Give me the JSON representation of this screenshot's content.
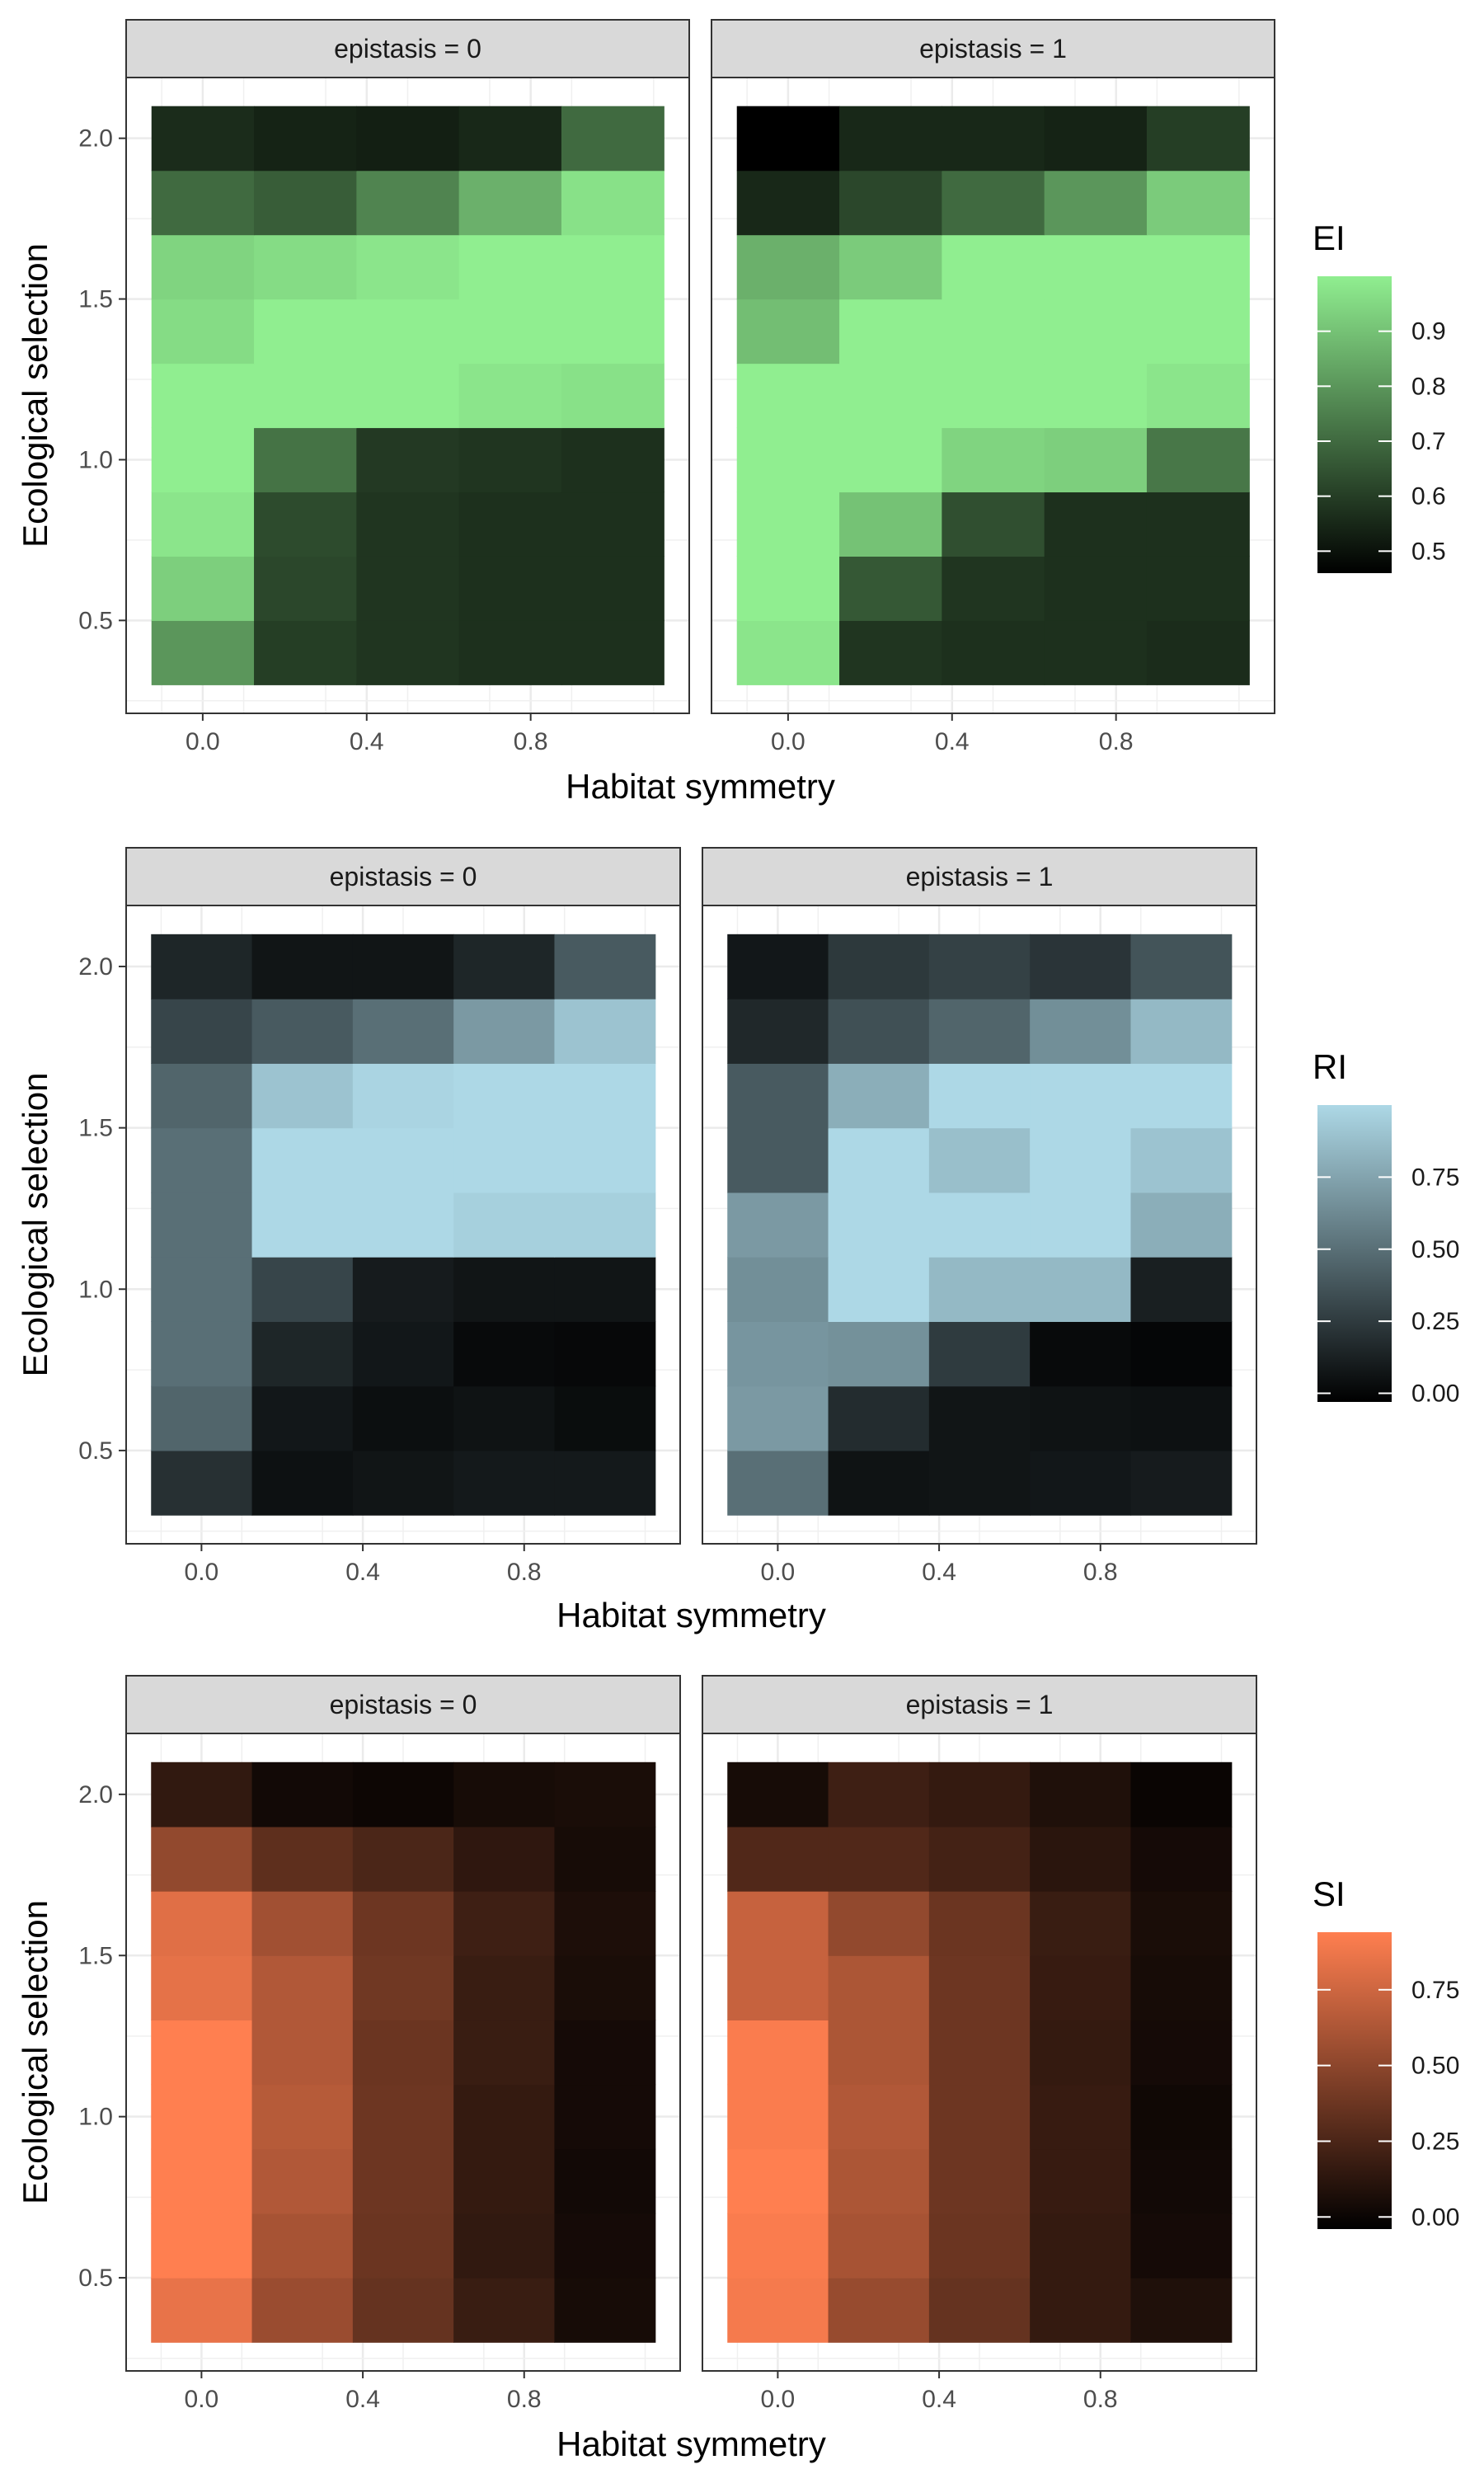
{
  "chart_data": [
    {
      "type": "heatmap",
      "metric": "EI",
      "xlabel": "Habitat symmetry",
      "ylabel": "Ecological selection",
      "x": [
        0.0,
        0.25,
        0.5,
        0.75,
        1.0
      ],
      "y": [
        0.4,
        0.6,
        0.8,
        1.0,
        1.2,
        1.4,
        1.6,
        1.8,
        2.0
      ],
      "x_tick_labels": [
        "0.0",
        "0.4",
        "0.8"
      ],
      "y_tick_labels": [
        "0.5",
        "1.0",
        "1.5",
        "2.0"
      ],
      "legend": {
        "title": "EI",
        "tick_labels": [
          "0.5",
          "0.6",
          "0.7",
          "0.8",
          "0.9"
        ],
        "ticks": [
          0.5,
          0.6,
          0.7,
          0.8,
          0.9
        ],
        "range": [
          0.46,
          1.0
        ],
        "low_color": "#000000",
        "high_color": "#90ee90"
      },
      "panels": [
        {
          "strip": "epistasis = 0",
          "z": [
            [
              0.8,
              0.6,
              0.58,
              0.57,
              0.57
            ],
            [
              0.93,
              0.62,
              0.58,
              0.57,
              0.57
            ],
            [
              0.98,
              0.63,
              0.58,
              0.57,
              0.57
            ],
            [
              1.0,
              0.72,
              0.59,
              0.58,
              0.57
            ],
            [
              1.0,
              1.0,
              1.0,
              0.98,
              0.97
            ],
            [
              0.96,
              1.0,
              1.0,
              1.0,
              1.0
            ],
            [
              0.94,
              0.96,
              0.98,
              1.0,
              1.0
            ],
            [
              0.7,
              0.67,
              0.76,
              0.86,
              0.97
            ],
            [
              0.56,
              0.54,
              0.53,
              0.55,
              0.7
            ]
          ]
        },
        {
          "strip": "epistasis = 1",
          "z": [
            [
              0.98,
              0.58,
              0.57,
              0.57,
              0.56
            ],
            [
              1.0,
              0.66,
              0.58,
              0.57,
              0.57
            ],
            [
              1.0,
              0.9,
              0.64,
              0.57,
              0.57
            ],
            [
              1.0,
              1.0,
              0.94,
              0.93,
              0.73
            ],
            [
              1.0,
              1.0,
              1.0,
              1.0,
              0.98
            ],
            [
              0.89,
              1.0,
              1.0,
              1.0,
              1.0
            ],
            [
              0.86,
              0.92,
              1.0,
              1.0,
              1.0
            ],
            [
              0.55,
              0.62,
              0.7,
              0.8,
              0.92
            ],
            [
              0.46,
              0.55,
              0.55,
              0.54,
              0.6
            ]
          ]
        }
      ]
    },
    {
      "type": "heatmap",
      "metric": "RI",
      "xlabel": "Habitat symmetry",
      "ylabel": "Ecological selection",
      "x": [
        0.0,
        0.25,
        0.5,
        0.75,
        1.0
      ],
      "y": [
        0.4,
        0.6,
        0.8,
        1.0,
        1.2,
        1.4,
        1.6,
        1.8,
        2.0
      ],
      "x_tick_labels": [
        "0.0",
        "0.4",
        "0.8"
      ],
      "y_tick_labels": [
        "0.5",
        "1.0",
        "1.5",
        "2.0"
      ],
      "legend": {
        "title": "RI",
        "tick_labels": [
          "0.00",
          "0.25",
          "0.50",
          "0.75"
        ],
        "ticks": [
          0.0,
          0.25,
          0.5,
          0.75
        ],
        "range": [
          -0.03,
          1.0
        ],
        "low_color": "#000000",
        "high_color": "#add8e6"
      },
      "panels": [
        {
          "strip": "epistasis = 0",
          "z": [
            [
              0.2,
              0.05,
              0.07,
              0.09,
              0.09
            ],
            [
              0.45,
              0.08,
              0.04,
              0.06,
              0.03
            ],
            [
              0.5,
              0.15,
              0.08,
              0.02,
              0.01
            ],
            [
              0.5,
              0.3,
              0.1,
              0.07,
              0.07
            ],
            [
              0.5,
              1.0,
              1.0,
              0.96,
              0.96
            ],
            [
              0.5,
              1.0,
              1.0,
              1.0,
              1.0
            ],
            [
              0.45,
              0.9,
              0.98,
              1.0,
              1.0
            ],
            [
              0.3,
              0.4,
              0.5,
              0.7,
              0.9
            ],
            [
              0.15,
              0.07,
              0.07,
              0.15,
              0.4
            ]
          ]
        },
        {
          "strip": "epistasis = 1",
          "z": [
            [
              0.5,
              0.06,
              0.07,
              0.08,
              0.1
            ],
            [
              0.7,
              0.18,
              0.07,
              0.06,
              0.05
            ],
            [
              0.68,
              0.66,
              0.25,
              0.02,
              0.0
            ],
            [
              0.65,
              1.0,
              0.85,
              0.85,
              0.12
            ],
            [
              0.7,
              1.0,
              1.0,
              1.0,
              0.8
            ],
            [
              0.4,
              1.0,
              0.88,
              1.0,
              0.9
            ],
            [
              0.4,
              0.8,
              1.0,
              1.0,
              1.0
            ],
            [
              0.16,
              0.35,
              0.45,
              0.65,
              0.85
            ],
            [
              0.08,
              0.24,
              0.28,
              0.22,
              0.37
            ]
          ]
        }
      ]
    },
    {
      "type": "heatmap",
      "metric": "SI",
      "xlabel": "Habitat symmetry",
      "ylabel": "Ecological selection",
      "x": [
        0.0,
        0.25,
        0.5,
        0.75,
        1.0
      ],
      "y": [
        0.4,
        0.6,
        0.8,
        1.0,
        1.2,
        1.4,
        1.6,
        1.8,
        2.0
      ],
      "x_tick_labels": [
        "0.0",
        "0.4",
        "0.8"
      ],
      "y_tick_labels": [
        "0.5",
        "1.0",
        "1.5",
        "2.0"
      ],
      "legend": {
        "title": "SI",
        "tick_labels": [
          "0.00",
          "0.25",
          "0.50",
          "0.75"
        ],
        "ticks": [
          0.0,
          0.25,
          0.5,
          0.75
        ],
        "range": [
          -0.04,
          0.94
        ],
        "low_color": "#000000",
        "high_color": "#ff7f50"
      },
      "panels": [
        {
          "strip": "epistasis = 0",
          "z": [
            [
              0.85,
              0.55,
              0.35,
              0.18,
              0.05
            ],
            [
              0.94,
              0.6,
              0.37,
              0.15,
              0.04
            ],
            [
              0.94,
              0.64,
              0.38,
              0.16,
              0.03
            ],
            [
              0.94,
              0.66,
              0.38,
              0.16,
              0.04
            ],
            [
              0.94,
              0.64,
              0.37,
              0.18,
              0.04
            ],
            [
              0.84,
              0.64,
              0.39,
              0.18,
              0.06
            ],
            [
              0.82,
              0.58,
              0.38,
              0.2,
              0.07
            ],
            [
              0.52,
              0.32,
              0.25,
              0.14,
              0.05
            ],
            [
              0.15,
              0.03,
              0.01,
              0.05,
              0.06
            ]
          ]
        },
        {
          "strip": "epistasis = 1",
          "z": [
            [
              0.9,
              0.54,
              0.35,
              0.16,
              0.08
            ],
            [
              0.92,
              0.6,
              0.37,
              0.16,
              0.04
            ],
            [
              0.94,
              0.62,
              0.38,
              0.17,
              0.03
            ],
            [
              0.92,
              0.64,
              0.38,
              0.17,
              0.02
            ],
            [
              0.92,
              0.62,
              0.38,
              0.16,
              0.04
            ],
            [
              0.72,
              0.62,
              0.38,
              0.17,
              0.05
            ],
            [
              0.72,
              0.52,
              0.37,
              0.18,
              0.06
            ],
            [
              0.27,
              0.27,
              0.22,
              0.12,
              0.04
            ],
            [
              0.05,
              0.2,
              0.16,
              0.08,
              0.0
            ]
          ]
        }
      ]
    }
  ]
}
